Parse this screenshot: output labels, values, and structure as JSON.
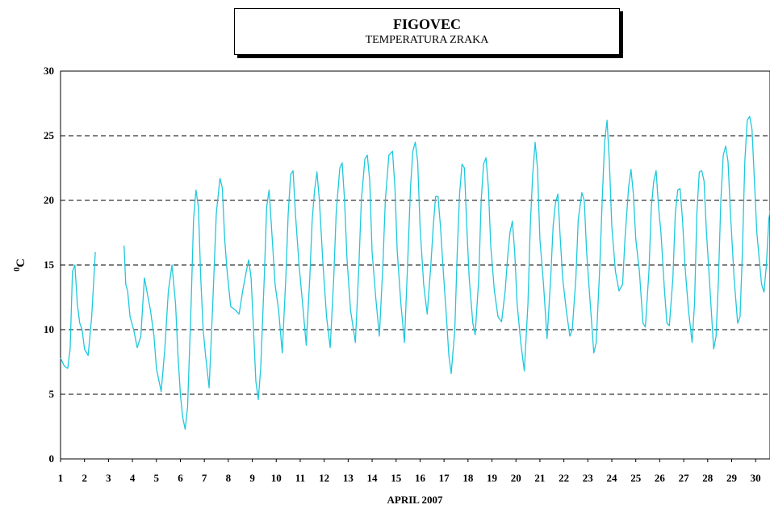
{
  "chart_data": {
    "type": "line",
    "title": "FIGOVEC",
    "subtitle": "TEMPERATURA ZRAKA",
    "xlabel": "APRIL 2007",
    "ylabel_sup": "0",
    "ylabel": "C",
    "ylim": [
      0,
      30
    ],
    "xlim": [
      1,
      30.6
    ],
    "yticks": [
      0,
      5,
      10,
      15,
      20,
      25,
      30
    ],
    "grid": "horizontal dashed",
    "line_color": "#1ec8dc",
    "categories": [
      "1",
      "2",
      "3",
      "4",
      "5",
      "6",
      "7",
      "8",
      "9",
      "10",
      "11",
      "12",
      "13",
      "14",
      "15",
      "16",
      "17",
      "18",
      "19",
      "20",
      "21",
      "22",
      "23",
      "24",
      "25",
      "26",
      "27",
      "28",
      "29",
      "30"
    ],
    "series": [
      {
        "values": [
          [
            1.0,
            7.8
          ],
          [
            1.15,
            7.2
          ],
          [
            1.3,
            7.0
          ],
          [
            1.4,
            8.5
          ],
          [
            1.5,
            14.5
          ],
          [
            1.6,
            15.0
          ],
          [
            1.7,
            12.0
          ],
          [
            1.8,
            10.5
          ],
          [
            1.9,
            10.0
          ],
          [
            2.0,
            8.5
          ],
          [
            2.15,
            8.0
          ],
          [
            2.3,
            11.0
          ],
          [
            2.45,
            16.0
          ],
          null,
          [
            3.65,
            16.5
          ],
          [
            3.72,
            13.5
          ],
          [
            3.8,
            13.0
          ],
          [
            3.9,
            11.0
          ],
          [
            4.05,
            10.0
          ],
          [
            4.2,
            8.6
          ],
          [
            4.35,
            9.5
          ],
          [
            4.5,
            14.0
          ],
          [
            4.6,
            13.0
          ],
          [
            4.75,
            11.5
          ],
          [
            4.9,
            9.5
          ],
          [
            5.0,
            7.0
          ],
          [
            5.2,
            5.2
          ],
          [
            5.35,
            8.5
          ],
          [
            5.5,
            13.0
          ],
          [
            5.65,
            15.0
          ],
          [
            5.8,
            12.0
          ],
          [
            5.9,
            8.0
          ],
          [
            6.0,
            5.0
          ],
          [
            6.1,
            3.2
          ],
          [
            6.2,
            2.3
          ],
          [
            6.3,
            4.0
          ],
          [
            6.45,
            12.0
          ],
          [
            6.55,
            18.5
          ],
          [
            6.65,
            20.8
          ],
          [
            6.75,
            19.5
          ],
          [
            6.85,
            14.0
          ],
          [
            6.95,
            10.0
          ],
          [
            7.05,
            8.0
          ],
          [
            7.2,
            5.5
          ],
          [
            7.35,
            12.0
          ],
          [
            7.5,
            19.0
          ],
          [
            7.65,
            21.7
          ],
          [
            7.75,
            21.0
          ],
          [
            7.85,
            17.0
          ],
          [
            7.95,
            14.5
          ],
          [
            8.1,
            11.8
          ],
          [
            8.3,
            11.5
          ],
          [
            8.45,
            11.2
          ],
          [
            8.6,
            13.0
          ],
          [
            8.75,
            14.5
          ],
          [
            8.85,
            15.4
          ],
          [
            8.95,
            14.0
          ],
          [
            9.05,
            10.0
          ],
          [
            9.15,
            6.0
          ],
          [
            9.25,
            4.6
          ],
          [
            9.35,
            7.0
          ],
          [
            9.5,
            14.0
          ],
          [
            9.6,
            19.5
          ],
          [
            9.7,
            20.8
          ],
          [
            9.8,
            18.0
          ],
          [
            9.95,
            13.5
          ],
          [
            10.1,
            11.5
          ],
          [
            10.25,
            8.2
          ],
          [
            10.4,
            14.0
          ],
          [
            10.5,
            19.0
          ],
          [
            10.6,
            22.0
          ],
          [
            10.7,
            22.3
          ],
          [
            10.8,
            19.0
          ],
          [
            10.95,
            15.0
          ],
          [
            11.1,
            12.0
          ],
          [
            11.25,
            8.8
          ],
          [
            11.4,
            14.0
          ],
          [
            11.5,
            18.5
          ],
          [
            11.6,
            20.8
          ],
          [
            11.7,
            22.2
          ],
          [
            11.8,
            20.0
          ],
          [
            11.95,
            15.0
          ],
          [
            12.1,
            11.0
          ],
          [
            12.25,
            8.6
          ],
          [
            12.4,
            14.0
          ],
          [
            12.5,
            19.0
          ],
          [
            12.65,
            22.5
          ],
          [
            12.75,
            22.9
          ],
          [
            12.85,
            20.0
          ],
          [
            12.95,
            15.5
          ],
          [
            13.1,
            11.5
          ],
          [
            13.3,
            9.0
          ],
          [
            13.45,
            15.0
          ],
          [
            13.55,
            20.0
          ],
          [
            13.7,
            23.2
          ],
          [
            13.8,
            23.5
          ],
          [
            13.9,
            21.5
          ],
          [
            14.0,
            16.0
          ],
          [
            14.15,
            12.5
          ],
          [
            14.3,
            9.5
          ],
          [
            14.45,
            15.0
          ],
          [
            14.55,
            20.0
          ],
          [
            14.7,
            23.5
          ],
          [
            14.85,
            23.8
          ],
          [
            14.95,
            21.0
          ],
          [
            15.05,
            16.0
          ],
          [
            15.2,
            12.0
          ],
          [
            15.35,
            9.0
          ],
          [
            15.5,
            16.0
          ],
          [
            15.6,
            21.0
          ],
          [
            15.7,
            23.8
          ],
          [
            15.8,
            24.5
          ],
          [
            15.9,
            23.0
          ],
          [
            16.0,
            18.0
          ],
          [
            16.15,
            13.5
          ],
          [
            16.3,
            11.2
          ],
          [
            16.45,
            15.0
          ],
          [
            16.55,
            18.0
          ],
          [
            16.65,
            20.3
          ],
          [
            16.75,
            20.3
          ],
          [
            16.85,
            18.0
          ],
          [
            16.95,
            15.0
          ],
          [
            17.1,
            11.0
          ],
          [
            17.2,
            8.0
          ],
          [
            17.3,
            6.6
          ],
          [
            17.45,
            10.0
          ],
          [
            17.55,
            16.0
          ],
          [
            17.65,
            20.5
          ],
          [
            17.75,
            22.8
          ],
          [
            17.85,
            22.5
          ],
          [
            17.95,
            18.0
          ],
          [
            18.05,
            14.0
          ],
          [
            18.2,
            10.5
          ],
          [
            18.3,
            9.6
          ],
          [
            18.45,
            14.0
          ],
          [
            18.55,
            20.0
          ],
          [
            18.65,
            22.8
          ],
          [
            18.75,
            23.3
          ],
          [
            18.85,
            21.0
          ],
          [
            18.95,
            16.5
          ],
          [
            19.1,
            13.0
          ],
          [
            19.25,
            11.0
          ],
          [
            19.4,
            10.6
          ],
          [
            19.55,
            13.0
          ],
          [
            19.65,
            15.5
          ],
          [
            19.75,
            17.5
          ],
          [
            19.85,
            18.4
          ],
          [
            19.95,
            16.0
          ],
          [
            20.05,
            12.0
          ],
          [
            20.2,
            9.0
          ],
          [
            20.35,
            6.8
          ],
          [
            20.5,
            12.0
          ],
          [
            20.6,
            18.0
          ],
          [
            20.7,
            22.0
          ],
          [
            20.8,
            24.5
          ],
          [
            20.9,
            22.5
          ],
          [
            21.0,
            17.0
          ],
          [
            21.15,
            13.5
          ],
          [
            21.3,
            9.3
          ],
          [
            21.45,
            14.0
          ],
          [
            21.55,
            18.0
          ],
          [
            21.65,
            19.8
          ],
          [
            21.75,
            20.5
          ],
          [
            21.85,
            17.0
          ],
          [
            21.95,
            14.0
          ],
          [
            22.1,
            11.5
          ],
          [
            22.25,
            9.5
          ],
          [
            22.35,
            10.0
          ],
          [
            22.5,
            14.0
          ],
          [
            22.6,
            18.5
          ],
          [
            22.75,
            20.6
          ],
          [
            22.85,
            20.0
          ],
          [
            22.95,
            16.0
          ],
          [
            23.1,
            12.0
          ],
          [
            23.25,
            8.2
          ],
          [
            23.35,
            9.0
          ],
          [
            23.5,
            15.0
          ],
          [
            23.6,
            20.0
          ],
          [
            23.7,
            24.5
          ],
          [
            23.8,
            26.2
          ],
          [
            23.9,
            23.0
          ],
          [
            24.0,
            18.0
          ],
          [
            24.15,
            14.5
          ],
          [
            24.3,
            13.0
          ],
          [
            24.45,
            13.5
          ],
          [
            24.55,
            17.0
          ],
          [
            24.7,
            21.0
          ],
          [
            24.8,
            22.4
          ],
          [
            24.9,
            20.5
          ],
          [
            25.0,
            17.0
          ],
          [
            25.15,
            14.5
          ],
          [
            25.3,
            10.5
          ],
          [
            25.4,
            10.2
          ],
          [
            25.55,
            14.5
          ],
          [
            25.65,
            19.5
          ],
          [
            25.75,
            21.5
          ],
          [
            25.85,
            22.3
          ],
          [
            25.95,
            19.5
          ],
          [
            26.05,
            17.5
          ],
          [
            26.2,
            13.0
          ],
          [
            26.3,
            10.5
          ],
          [
            26.4,
            10.3
          ],
          [
            26.55,
            14.0
          ],
          [
            26.65,
            19.0
          ],
          [
            26.75,
            20.8
          ],
          [
            26.85,
            20.9
          ],
          [
            26.95,
            18.5
          ],
          [
            27.05,
            15.0
          ],
          [
            27.2,
            11.5
          ],
          [
            27.35,
            9.0
          ],
          [
            27.45,
            12.0
          ],
          [
            27.55,
            19.0
          ],
          [
            27.65,
            22.2
          ],
          [
            27.75,
            22.3
          ],
          [
            27.85,
            21.5
          ],
          [
            27.95,
            17.5
          ],
          [
            28.1,
            13.0
          ],
          [
            28.25,
            8.5
          ],
          [
            28.35,
            9.5
          ],
          [
            28.45,
            14.0
          ],
          [
            28.55,
            20.0
          ],
          [
            28.65,
            23.5
          ],
          [
            28.75,
            24.2
          ],
          [
            28.85,
            23.0
          ],
          [
            28.95,
            19.0
          ],
          [
            29.1,
            14.0
          ],
          [
            29.25,
            10.5
          ],
          [
            29.35,
            11.0
          ],
          [
            29.45,
            16.0
          ],
          [
            29.55,
            23.0
          ],
          [
            29.65,
            26.2
          ],
          [
            29.75,
            26.5
          ],
          [
            29.85,
            25.5
          ],
          [
            29.95,
            21.5
          ],
          [
            30.05,
            17.5
          ],
          [
            30.15,
            15.5
          ],
          [
            30.25,
            13.5
          ],
          [
            30.35,
            12.9
          ],
          [
            30.45,
            15.0
          ],
          [
            30.55,
            18.5
          ],
          [
            30.6,
            19.2
          ]
        ]
      }
    ]
  }
}
